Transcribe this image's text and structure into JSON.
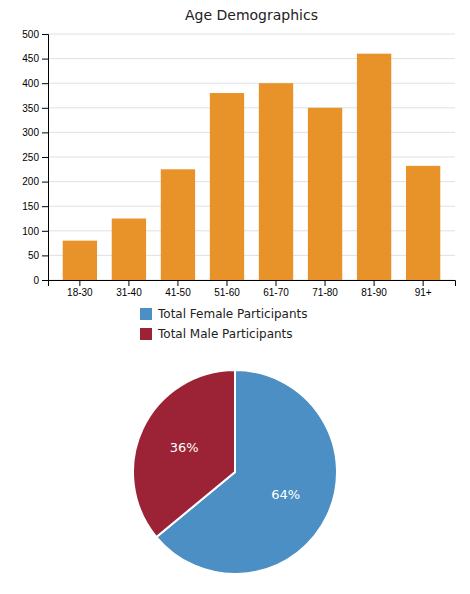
{
  "chart_data": [
    {
      "type": "bar",
      "title": "Age Demographics",
      "categories": [
        "18-30",
        "31-40",
        "41-50",
        "51-60",
        "61-70",
        "71-80",
        "81-90",
        "91+"
      ],
      "values": [
        80,
        125,
        225,
        380,
        400,
        350,
        460,
        232
      ],
      "color": "#E8922A",
      "ylim": [
        0,
        500
      ],
      "yticks": [
        0,
        50,
        100,
        150,
        200,
        250,
        300,
        350,
        400,
        450,
        500
      ],
      "grid": true
    },
    {
      "type": "pie",
      "categories": [
        "Total Female Participants",
        "Total Male Participants"
      ],
      "values": [
        64,
        36
      ],
      "value_labels": [
        "64%",
        "36%"
      ],
      "colors": [
        "#4B8FC4",
        "#9B2335"
      ],
      "data_labels": true,
      "legend": "top"
    }
  ]
}
